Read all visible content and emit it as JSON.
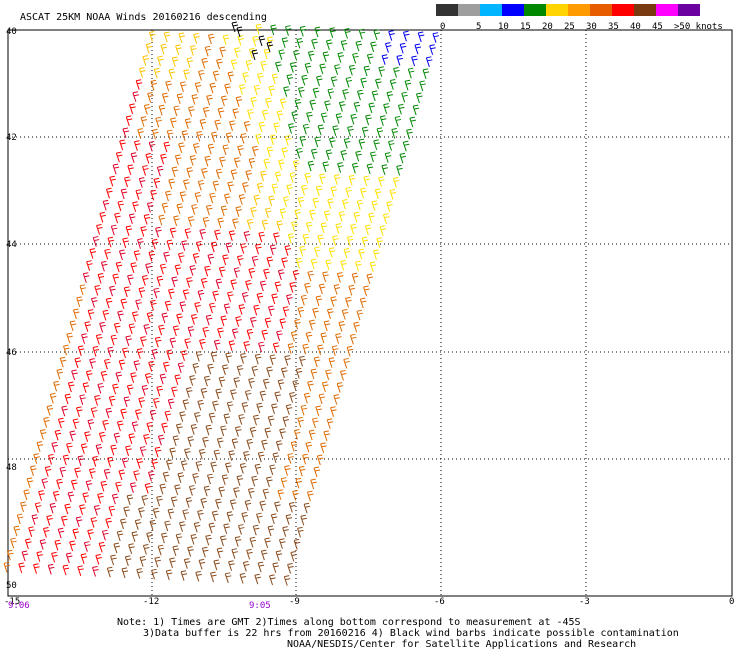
{
  "title": "ASCAT 25KM NOAA Winds 20160216 descending",
  "legend": {
    "labels": [
      "0",
      "5",
      "10",
      "15",
      "20",
      "25",
      "30",
      "35",
      "40",
      "45",
      ">50 knots"
    ],
    "colors": [
      "#333333",
      "#9e9e9e",
      "#00b5ff",
      "#0000ff",
      "#008800",
      "#ffd400",
      "#ff9a00",
      "#e85c00",
      "#ff0000",
      "#7a3a10",
      "#ff00ff",
      "#6a00a0"
    ]
  },
  "lat_labels": [
    "40",
    "42",
    "44",
    "46",
    "48",
    "50"
  ],
  "lon_labels": [
    "-15",
    "-12",
    "-9",
    "-6",
    "-3",
    "0"
  ],
  "time_labels": [
    {
      "text": "9:06",
      "color": "#9900cc"
    },
    {
      "text": "9:05",
      "color": "#9900cc"
    }
  ],
  "notes": {
    "line1": "Note: 1) Times are GMT 2)Times along bottom correspond to measurement at -45S",
    "line2": "3)Data buffer is 22 hrs from 20160216 4) Black wind barbs indicate possible contamination",
    "line3": "NOAA/NESDIS/Center for Satellite Applications and Research"
  },
  "barb_colors": {
    "red": "#ff0000",
    "crimson": "#e0002a",
    "orange": "#e06a00",
    "gold": "#ffc400",
    "yellow": "#ffe000",
    "green": "#008800",
    "blue": "#0000ee",
    "brown": "#8a4a1a",
    "black": "#000000"
  }
}
